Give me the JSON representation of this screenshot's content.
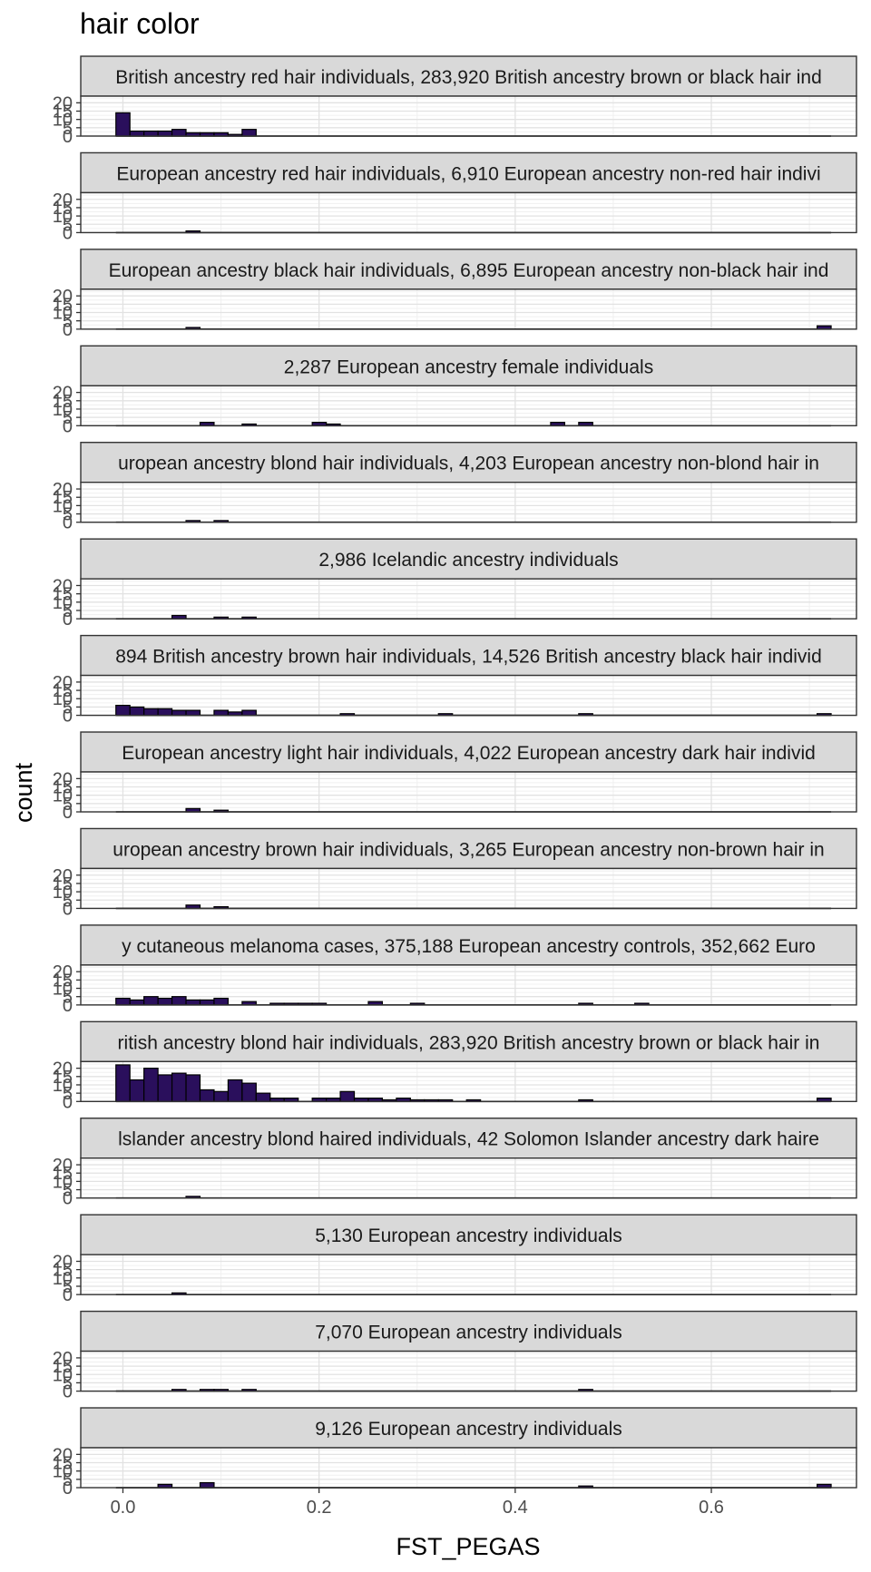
{
  "chart_data": {
    "type": "bar",
    "title": "hair color",
    "xlabel": "FST_PEGAS",
    "ylabel": "count",
    "x_ticks": [
      0.0,
      0.2,
      0.4,
      0.6
    ],
    "x_tick_labels": [
      "0.0",
      "0.2",
      "0.4",
      "0.6"
    ],
    "y_ticks": [
      0,
      5,
      10,
      15,
      20
    ],
    "y_tick_labels": [
      "0",
      "5",
      "10",
      "15",
      "20"
    ],
    "xlim": [
      -0.043,
      0.748
    ],
    "ylim": [
      0,
      24
    ],
    "bin_width": 0.0143,
    "bin_start": -0.00715,
    "bin_count": 51,
    "grid": true,
    "fill_color": "#2a0f5c",
    "panels": [
      {
        "strip_label": "British ancestry red hair individuals, 283,920 British ancestry brown or black hair ind",
        "bins": [
          [
            0,
            14
          ],
          [
            1,
            3
          ],
          [
            2,
            3
          ],
          [
            3,
            3
          ],
          [
            4,
            4
          ],
          [
            5,
            2
          ],
          [
            6,
            2
          ],
          [
            7,
            2
          ],
          [
            8,
            1
          ],
          [
            9,
            4
          ]
        ]
      },
      {
        "strip_label": "European ancestry red hair individuals, 6,910 European ancestry non-red hair indivi",
        "bins": [
          [
            5,
            1
          ]
        ]
      },
      {
        "strip_label": "European ancestry black hair individuals, 6,895 European ancestry non-black hair ind",
        "bins": [
          [
            5,
            1
          ],
          [
            50,
            2
          ]
        ]
      },
      {
        "strip_label": "2,287 European ancestry female individuals",
        "bins": [
          [
            6,
            2
          ],
          [
            9,
            1
          ],
          [
            14,
            2
          ],
          [
            15,
            1
          ],
          [
            31,
            2
          ],
          [
            33,
            2
          ]
        ]
      },
      {
        "strip_label": "uropean ancestry blond hair individuals, 4,203 European ancestry non-blond hair in",
        "bins": [
          [
            5,
            1
          ],
          [
            7,
            1
          ]
        ]
      },
      {
        "strip_label": "2,986 Icelandic ancestry individuals",
        "bins": [
          [
            4,
            2
          ],
          [
            7,
            1
          ],
          [
            9,
            1
          ]
        ]
      },
      {
        "strip_label": "894 British ancestry brown hair individuals, 14,526 British ancestry black hair individ",
        "bins": [
          [
            0,
            6
          ],
          [
            1,
            5
          ],
          [
            2,
            4
          ],
          [
            3,
            4
          ],
          [
            4,
            3
          ],
          [
            5,
            3
          ],
          [
            7,
            3
          ],
          [
            8,
            2
          ],
          [
            9,
            3
          ],
          [
            16,
            1
          ],
          [
            23,
            1
          ],
          [
            33,
            1
          ],
          [
            50,
            1
          ]
        ]
      },
      {
        "strip_label": "European ancestry light hair individuals, 4,022 European ancestry dark hair individ",
        "bins": [
          [
            5,
            2
          ],
          [
            7,
            1
          ]
        ]
      },
      {
        "strip_label": "uropean ancestry brown hair individuals, 3,265 European ancestry non-brown hair in",
        "bins": [
          [
            5,
            2
          ],
          [
            7,
            1
          ]
        ]
      },
      {
        "strip_label": "y cutaneous melanoma cases, 375,188 European ancestry controls, 352,662 Euro",
        "bins": [
          [
            0,
            4
          ],
          [
            1,
            3
          ],
          [
            2,
            5
          ],
          [
            3,
            4
          ],
          [
            4,
            5
          ],
          [
            5,
            3
          ],
          [
            6,
            3
          ],
          [
            7,
            4
          ],
          [
            9,
            2
          ],
          [
            11,
            1
          ],
          [
            12,
            1
          ],
          [
            13,
            1
          ],
          [
            14,
            1
          ],
          [
            18,
            2
          ],
          [
            21,
            1
          ],
          [
            33,
            1
          ],
          [
            37,
            1
          ]
        ]
      },
      {
        "strip_label": "ritish ancestry blond hair individuals, 283,920 British ancestry brown or black hair in",
        "bins": [
          [
            0,
            22
          ],
          [
            1,
            13
          ],
          [
            2,
            20
          ],
          [
            3,
            16
          ],
          [
            4,
            17
          ],
          [
            5,
            16
          ],
          [
            6,
            7
          ],
          [
            7,
            6
          ],
          [
            8,
            13
          ],
          [
            9,
            11
          ],
          [
            10,
            5
          ],
          [
            11,
            2
          ],
          [
            12,
            2
          ],
          [
            14,
            2
          ],
          [
            15,
            2
          ],
          [
            16,
            6
          ],
          [
            17,
            2
          ],
          [
            18,
            2
          ],
          [
            19,
            1
          ],
          [
            20,
            2
          ],
          [
            21,
            1
          ],
          [
            22,
            1
          ],
          [
            23,
            1
          ],
          [
            25,
            1
          ],
          [
            33,
            1
          ],
          [
            50,
            2
          ]
        ]
      },
      {
        "strip_label": "lslander ancestry blond haired individuals, 42 Solomon Islander ancestry dark haire",
        "bins": [
          [
            5,
            1
          ]
        ]
      },
      {
        "strip_label": "5,130 European ancestry individuals",
        "bins": [
          [
            4,
            1
          ]
        ]
      },
      {
        "strip_label": "7,070 European ancestry individuals",
        "bins": [
          [
            4,
            1
          ],
          [
            6,
            1
          ],
          [
            7,
            1
          ],
          [
            9,
            1
          ],
          [
            33,
            1
          ]
        ]
      },
      {
        "strip_label": "9,126 European ancestry individuals",
        "bins": [
          [
            3,
            2
          ],
          [
            6,
            3
          ],
          [
            33,
            1
          ],
          [
            50,
            2
          ]
        ]
      }
    ]
  }
}
